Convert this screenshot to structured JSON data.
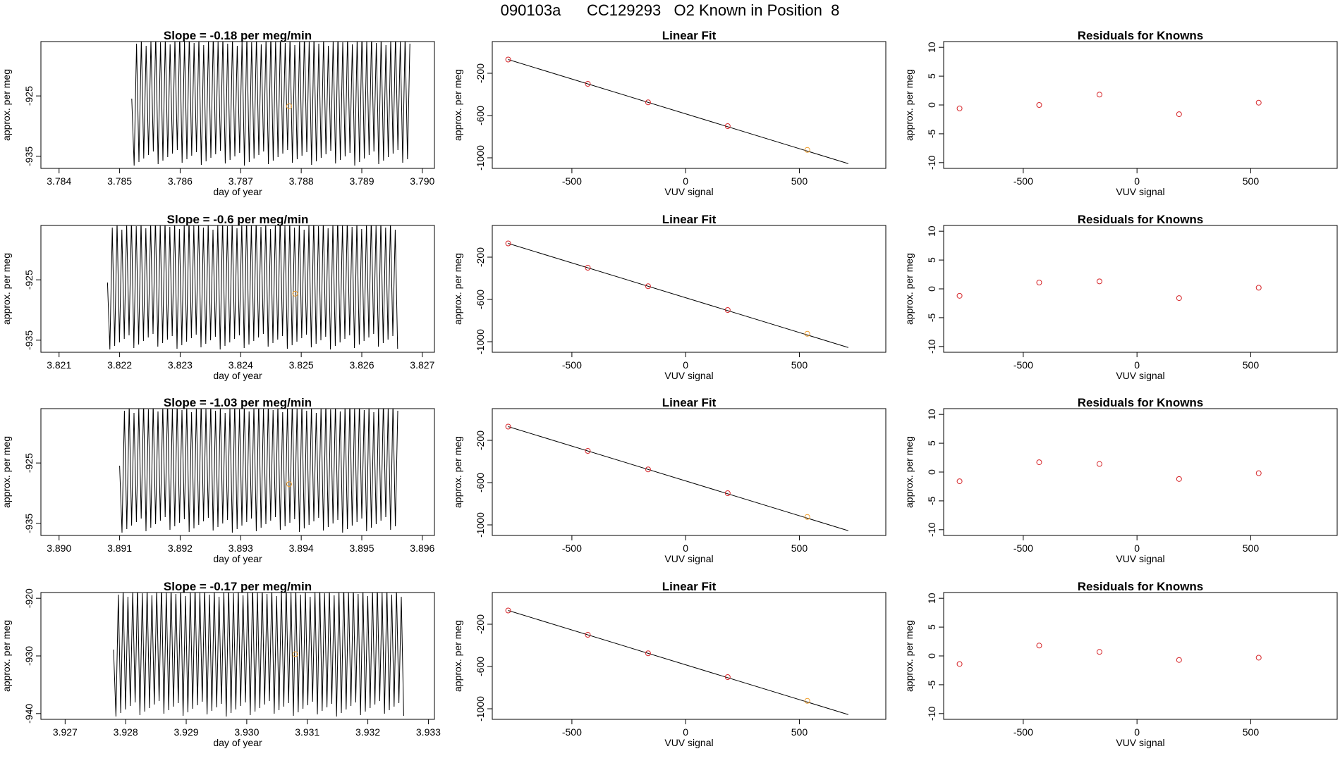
{
  "page_title": "090103a      CC129293   O2 Known in Position  8",
  "colors": {
    "axis": "#000000",
    "trace": "#000000",
    "known_point": "#d6272b",
    "highlight_point": "#f0a030"
  },
  "chart_data": [
    {
      "type": "line",
      "title": "Slope =  -0.18  per meg/min",
      "xlabel": "day of year",
      "ylabel": "approx. per meg",
      "xlim": [
        3.7837,
        3.7902
      ],
      "ylim": [
        -937,
        -916
      ],
      "xticks": [
        "3.784",
        "3.785",
        "3.786",
        "3.787",
        "3.788",
        "3.789",
        "3.790"
      ],
      "yticks": [
        "-925",
        "-935"
      ],
      "trace_start": 3.7852,
      "trace_end": 3.7898,
      "trace_highlight": 3.7878,
      "highlight_value": -926.7
    },
    {
      "type": "scatter",
      "title": "Linear Fit",
      "xlabel": "VUV signal",
      "ylabel": "approx. per meg",
      "xlim": [
        -850,
        880
      ],
      "ylim": [
        -1100,
        100
      ],
      "xticks": [
        "-500",
        "0",
        "500"
      ],
      "yticks": [
        "-200",
        "-600",
        "-1000"
      ],
      "x": [
        -780,
        -430,
        -165,
        185,
        535
      ],
      "y": [
        -70,
        -300,
        -475,
        -700,
        -925
      ],
      "fit": {
        "x": [
          -780,
          715
        ],
        "y": [
          -70,
          -1055
        ]
      }
    },
    {
      "type": "scatter",
      "title": "Residuals for Knowns",
      "xlabel": "VUV signal",
      "ylabel": "approx. per meg",
      "xlim": [
        -850,
        880
      ],
      "ylim": [
        -11,
        11
      ],
      "xticks": [
        "-500",
        "0",
        "500"
      ],
      "yticks": [
        "10",
        "5",
        "0",
        "-5",
        "-10"
      ],
      "x": [
        -780,
        -430,
        -165,
        185,
        535
      ],
      "y": [
        -0.6,
        0.0,
        1.8,
        -1.6,
        0.4
      ]
    },
    {
      "type": "line",
      "title": "Slope =  -0.6  per meg/min",
      "xlabel": "day of year",
      "ylabel": "approx. per meg",
      "xlim": [
        3.8207,
        3.8272
      ],
      "ylim": [
        -937,
        -916
      ],
      "xticks": [
        "3.821",
        "3.822",
        "3.823",
        "3.824",
        "3.825",
        "3.826",
        "3.827"
      ],
      "yticks": [
        "-925",
        "-935"
      ],
      "trace_start": 3.8218,
      "trace_end": 3.8266,
      "trace_highlight": 3.8249,
      "highlight_value": -927.3
    },
    {
      "type": "scatter",
      "title": "Linear Fit",
      "xlabel": "VUV signal",
      "ylabel": "approx. per meg",
      "xlim": [
        -850,
        880
      ],
      "ylim": [
        -1100,
        100
      ],
      "xticks": [
        "-500",
        "0",
        "500"
      ],
      "yticks": [
        "-200",
        "-600",
        "-1000"
      ],
      "x": [
        -780,
        -430,
        -165,
        185,
        535
      ],
      "y": [
        -70,
        -300,
        -475,
        -700,
        -925
      ],
      "fit": {
        "x": [
          -780,
          715
        ],
        "y": [
          -70,
          -1055
        ]
      }
    },
    {
      "type": "scatter",
      "title": "Residuals for Knowns",
      "xlabel": "VUV signal",
      "ylabel": "approx. per meg",
      "xlim": [
        -850,
        880
      ],
      "ylim": [
        -11,
        11
      ],
      "xticks": [
        "-500",
        "0",
        "500"
      ],
      "yticks": [
        "10",
        "5",
        "0",
        "-5",
        "-10"
      ],
      "x": [
        -780,
        -430,
        -165,
        185,
        535
      ],
      "y": [
        -1.2,
        1.1,
        1.3,
        -1.6,
        0.2
      ]
    },
    {
      "type": "line",
      "title": "Slope =  -1.03  per meg/min",
      "xlabel": "day of year",
      "ylabel": "approx. per meg",
      "xlim": [
        3.8897,
        3.8962
      ],
      "ylim": [
        -937,
        -916
      ],
      "xticks": [
        "3.890",
        "3.891",
        "3.892",
        "3.893",
        "3.894",
        "3.895",
        "3.896"
      ],
      "yticks": [
        "-925",
        "-935"
      ],
      "trace_start": 3.891,
      "trace_end": 3.8956,
      "trace_highlight": 3.8938,
      "highlight_value": -928.5
    },
    {
      "type": "scatter",
      "title": "Linear Fit",
      "xlabel": "VUV signal",
      "ylabel": "approx. per meg",
      "xlim": [
        -850,
        880
      ],
      "ylim": [
        -1100,
        100
      ],
      "xticks": [
        "-500",
        "0",
        "500"
      ],
      "yticks": [
        "-200",
        "-600",
        "-1000"
      ],
      "x": [
        -780,
        -430,
        -165,
        185,
        535
      ],
      "y": [
        -70,
        -300,
        -475,
        -700,
        -925
      ],
      "fit": {
        "x": [
          -780,
          715
        ],
        "y": [
          -70,
          -1055
        ]
      }
    },
    {
      "type": "scatter",
      "title": "Residuals for Knowns",
      "xlabel": "VUV signal",
      "ylabel": "approx. per meg",
      "xlim": [
        -850,
        880
      ],
      "ylim": [
        -11,
        11
      ],
      "xticks": [
        "-500",
        "0",
        "500"
      ],
      "yticks": [
        "10",
        "5",
        "0",
        "-5",
        "-10"
      ],
      "x": [
        -780,
        -430,
        -165,
        185,
        535
      ],
      "y": [
        -1.6,
        1.7,
        1.4,
        -1.2,
        -0.2
      ]
    },
    {
      "type": "line",
      "title": "Slope =  -0.17  per meg/min",
      "xlabel": "day of year",
      "ylabel": "approx. per meg",
      "xlim": [
        3.9266,
        3.9331
      ],
      "ylim": [
        -941,
        -919
      ],
      "xticks": [
        "3.927",
        "3.928",
        "3.929",
        "3.930",
        "3.931",
        "3.932",
        "3.933"
      ],
      "yticks": [
        "-920",
        "-930",
        "-940"
      ],
      "trace_start": 3.9278,
      "trace_end": 3.9326,
      "trace_highlight": 3.9308,
      "highlight_value": -929.7
    },
    {
      "type": "scatter",
      "title": "Linear Fit",
      "xlabel": "VUV signal",
      "ylabel": "approx. per meg",
      "xlim": [
        -850,
        880
      ],
      "ylim": [
        -1100,
        100
      ],
      "xticks": [
        "-500",
        "0",
        "500"
      ],
      "yticks": [
        "-200",
        "-600",
        "-1000"
      ],
      "x": [
        -780,
        -430,
        -165,
        185,
        535
      ],
      "y": [
        -70,
        -300,
        -475,
        -700,
        -925
      ],
      "fit": {
        "x": [
          -780,
          715
        ],
        "y": [
          -70,
          -1055
        ]
      }
    },
    {
      "type": "scatter",
      "title": "Residuals for Knowns",
      "xlabel": "VUV signal",
      "ylabel": "approx. per meg",
      "xlim": [
        -850,
        880
      ],
      "ylim": [
        -11,
        11
      ],
      "xticks": [
        "-500",
        "0",
        "500"
      ],
      "yticks": [
        "10",
        "5",
        "0",
        "-5",
        "-10"
      ],
      "x": [
        -780,
        -430,
        -165,
        185,
        535
      ],
      "y": [
        -1.4,
        1.8,
        0.7,
        -0.7,
        -0.3
      ]
    }
  ]
}
